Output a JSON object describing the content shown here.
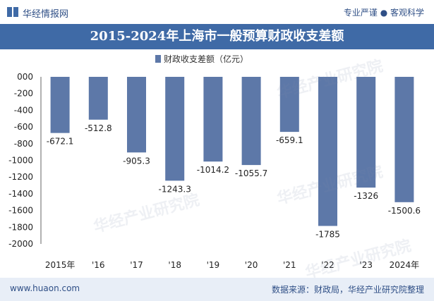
{
  "header": {
    "logo_text": "华经情报网",
    "tagline": "专业严谨 ● 客观科学"
  },
  "colors": {
    "brand": "#2f4f86",
    "title_bar": "#3f6aa6",
    "bar": "#5d78a8",
    "footer_bg": "#e8eef7"
  },
  "chart_data": {
    "type": "bar",
    "title": "2015-2024年上海市一般预算财政收支差额",
    "categories": [
      "2015年",
      "'16",
      "'17",
      "'18",
      "'19",
      "'20",
      "'21",
      "'22",
      "'23",
      "2024年"
    ],
    "series": [
      {
        "name": "财政收支差额（亿元）",
        "values": [
          -672.1,
          -512.8,
          -905.3,
          -1243.3,
          -1014.2,
          -1055.7,
          -659.1,
          -1785,
          -1326,
          -1500.6
        ]
      }
    ],
    "value_labels": [
      "-672.1",
      "-512.8",
      "-905.3",
      "-1243.3",
      "-1014.2",
      "-1055.7",
      "-659.1",
      "-1785",
      "-1326",
      "-1500.6"
    ],
    "y_ticks": [
      0,
      -200,
      -400,
      -600,
      -800,
      -1000,
      -1200,
      -1400,
      -1600,
      -1800,
      -2000
    ],
    "y_tick_labels": [
      "000",
      "-200",
      "-400",
      "-600",
      "-800",
      "-1000",
      "-1200",
      "-1400",
      "-1600",
      "-1800",
      "-2000"
    ],
    "ylim": [
      -2000,
      0
    ],
    "legend_position": "top-center",
    "grid": false
  },
  "watermarks": [
    "华经产业研究院",
    "www.huaon.com"
  ],
  "footer": {
    "website": "www.huaon.com",
    "source": "数据来源：财政局，华经产业研究院整理"
  }
}
